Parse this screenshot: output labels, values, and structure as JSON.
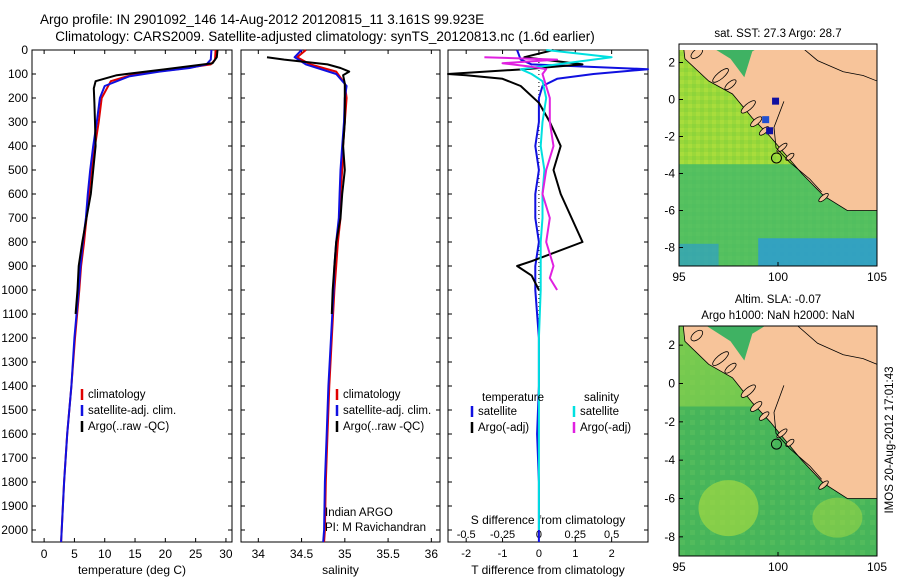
{
  "title_line1": "Argo profile: IN 2901092_146 14-Aug-2012 20120815_11 3.161S 99.923E",
  "title_line2": "Climatology: CARS2009. Satellite-adjusted climatology: synTS_20120813.nc (1.6d earlier)",
  "colors": {
    "climatology": "#e00000",
    "satellite": "#1010e0",
    "argo": "#000000",
    "sal_satellite": "#00e0e0",
    "sal_argo": "#e020e0",
    "land": "#f7c49a"
  },
  "chart_data": [
    {
      "type": "line",
      "name": "temperature",
      "xlabel": "temperature (deg C)",
      "ylabel": "",
      "xlim": [
        -2,
        31
      ],
      "ylim": [
        2050,
        0
      ],
      "xticks": [
        0,
        5,
        10,
        15,
        20,
        25,
        30
      ],
      "yticks": [
        0,
        100,
        200,
        300,
        400,
        500,
        600,
        700,
        800,
        900,
        1000,
        1100,
        1200,
        1300,
        1400,
        1500,
        1600,
        1700,
        1800,
        1900,
        2000
      ],
      "legend": [
        "climatology",
        "satellite-adj. clim.",
        "Argo(..raw -QC)"
      ],
      "series": [
        {
          "name": "climatology",
          "color": "#e00000",
          "points": [
            [
              28.3,
              0
            ],
            [
              28.2,
              40
            ],
            [
              27.5,
              60
            ],
            [
              22,
              80
            ],
            [
              15,
              100
            ],
            [
              11,
              130
            ],
            [
              9.5,
              200
            ],
            [
              9,
              300
            ],
            [
              8.4,
              400
            ],
            [
              7.8,
              500
            ],
            [
              7.4,
              600
            ],
            [
              7,
              700
            ],
            [
              6.6,
              800
            ],
            [
              6.1,
              900
            ],
            [
              5.8,
              1000
            ],
            [
              5.1,
              1200
            ],
            [
              4.5,
              1400
            ],
            [
              3.8,
              1600
            ],
            [
              3.3,
              1800
            ],
            [
              2.9,
              2000
            ],
            [
              2.8,
              2050
            ]
          ]
        },
        {
          "name": "satellite-adj. clim.",
          "color": "#1010e0",
          "points": [
            [
              27.6,
              0
            ],
            [
              27.5,
              40
            ],
            [
              26.8,
              60
            ],
            [
              24,
              75
            ],
            [
              19,
              90
            ],
            [
              14,
              110
            ],
            [
              10,
              150
            ],
            [
              9.2,
              200
            ],
            [
              8.7,
              300
            ],
            [
              8.1,
              400
            ],
            [
              7.6,
              500
            ],
            [
              7.2,
              600
            ],
            [
              6.9,
              700
            ],
            [
              6.4,
              800
            ],
            [
              6,
              900
            ],
            [
              5.7,
              1000
            ],
            [
              5,
              1200
            ],
            [
              4.5,
              1400
            ],
            [
              3.8,
              1600
            ],
            [
              3.3,
              1800
            ],
            [
              2.9,
              2000
            ],
            [
              2.8,
              2050
            ]
          ]
        },
        {
          "name": "Argo(..raw -QC)",
          "color": "#000000",
          "points": [
            [
              28.6,
              0
            ],
            [
              28.5,
              30
            ],
            [
              27.8,
              55
            ],
            [
              20,
              80
            ],
            [
              12,
              105
            ],
            [
              8.5,
              130
            ],
            [
              8.2,
              160
            ],
            [
              8.3,
              220
            ],
            [
              8.4,
              300
            ],
            [
              8.5,
              400
            ],
            [
              8.1,
              500
            ],
            [
              7.7,
              600
            ],
            [
              7,
              700
            ],
            [
              6.3,
              800
            ],
            [
              5.7,
              900
            ],
            [
              5.5,
              1000
            ],
            [
              5.2,
              1100
            ]
          ]
        }
      ]
    },
    {
      "type": "line",
      "name": "salinity",
      "xlabel": "salinity",
      "ylabel": "",
      "xlim": [
        33.8,
        36.1
      ],
      "ylim": [
        2050,
        0
      ],
      "xticks": [
        34,
        34.5,
        35,
        35.5,
        36
      ],
      "legend": [
        "climatology",
        "satellite-adj. clim.",
        "Argo(..raw -QC)"
      ],
      "annotation": [
        "Indian ARGO",
        "PI: M Ravichandran"
      ],
      "series": [
        {
          "name": "climatology",
          "color": "#e00000",
          "points": [
            [
              34.55,
              0
            ],
            [
              34.45,
              30
            ],
            [
              34.6,
              60
            ],
            [
              34.9,
              90
            ],
            [
              35.0,
              140
            ],
            [
              35.02,
              200
            ],
            [
              35.0,
              300
            ],
            [
              34.98,
              400
            ],
            [
              34.97,
              500
            ],
            [
              34.95,
              600
            ],
            [
              34.95,
              700
            ],
            [
              34.92,
              800
            ],
            [
              34.9,
              900
            ],
            [
              34.88,
              1000
            ],
            [
              34.85,
              1200
            ],
            [
              34.82,
              1400
            ],
            [
              34.8,
              1600
            ],
            [
              34.78,
              1800
            ],
            [
              34.77,
              2000
            ],
            [
              34.76,
              2050
            ]
          ]
        },
        {
          "name": "satellite-adj. clim.",
          "color": "#1010e0",
          "points": [
            [
              34.5,
              0
            ],
            [
              34.42,
              30
            ],
            [
              34.55,
              60
            ],
            [
              34.9,
              100
            ],
            [
              35.02,
              150
            ],
            [
              35.0,
              200
            ],
            [
              34.99,
              300
            ],
            [
              34.97,
              400
            ],
            [
              34.95,
              500
            ],
            [
              34.94,
              600
            ],
            [
              34.93,
              700
            ],
            [
              34.9,
              800
            ],
            [
              34.88,
              900
            ],
            [
              34.87,
              1000
            ],
            [
              34.84,
              1200
            ],
            [
              34.81,
              1400
            ],
            [
              34.79,
              1600
            ],
            [
              34.77,
              1800
            ],
            [
              34.76,
              2000
            ],
            [
              34.75,
              2050
            ]
          ]
        },
        {
          "name": "Argo(..raw -QC)",
          "color": "#000000",
          "points": [
            [
              34.1,
              30
            ],
            [
              34.3,
              40
            ],
            [
              34.8,
              60
            ],
            [
              34.95,
              75
            ],
            [
              35.05,
              90
            ],
            [
              34.98,
              105
            ],
            [
              35.0,
              140
            ],
            [
              35.0,
              200
            ],
            [
              35.0,
              300
            ],
            [
              34.98,
              400
            ],
            [
              35.0,
              500
            ],
            [
              34.97,
              600
            ],
            [
              34.95,
              700
            ],
            [
              34.9,
              800
            ],
            [
              34.88,
              900
            ],
            [
              34.86,
              1000
            ],
            [
              34.85,
              1100
            ]
          ]
        }
      ]
    },
    {
      "type": "line",
      "name": "difference",
      "xlabel": "T difference from climatology",
      "xlabel_top": "S difference from climatology",
      "xlim": [
        -2.5,
        3
      ],
      "ylim": [
        2050,
        0
      ],
      "xticks": [
        -2,
        -1,
        0,
        1,
        2
      ],
      "xticks_s": [
        -0.5,
        -0.25,
        0,
        0.25,
        0.5
      ],
      "xticks_s_labels": [
        "-0.5",
        "-0.25",
        "0",
        "0.25",
        "0.5"
      ],
      "legend_t_title": "temperature",
      "legend_s_title": "salinity",
      "legend": [
        "satellite",
        "Argo(-adj)",
        "satellite",
        "Argo(-adj)"
      ],
      "series": [
        {
          "name": "T satellite",
          "color": "#1010e0",
          "points": [
            [
              -0.6,
              0
            ],
            [
              -0.5,
              40
            ],
            [
              -0.2,
              60
            ],
            [
              3,
              80
            ],
            [
              1.5,
              100
            ],
            [
              0.5,
              120
            ],
            [
              0.1,
              150
            ],
            [
              0,
              200
            ],
            [
              0,
              300
            ],
            [
              -0.1,
              400
            ],
            [
              0,
              500
            ],
            [
              -0.1,
              600
            ],
            [
              -0.1,
              700
            ],
            [
              0,
              800
            ],
            [
              -0.1,
              900
            ],
            [
              -0.1,
              1000
            ],
            [
              0,
              1200
            ],
            [
              0,
              1400
            ],
            [
              -0.05,
              1600
            ],
            [
              0,
              1800
            ],
            [
              0,
              2000
            ],
            [
              0,
              2050
            ]
          ]
        },
        {
          "name": "T Argo(-adj)",
          "color": "#000000",
          "points": [
            [
              0.4,
              0
            ],
            [
              -0.4,
              30
            ],
            [
              1.2,
              60
            ],
            [
              -0.4,
              80
            ],
            [
              -2.5,
              100
            ],
            [
              -2,
              105
            ],
            [
              -1.0,
              120
            ],
            [
              -0.5,
              150
            ],
            [
              0,
              220
            ],
            [
              0.3,
              300
            ],
            [
              0.6,
              400
            ],
            [
              0.4,
              500
            ],
            [
              0.6,
              600
            ],
            [
              0.9,
              700
            ],
            [
              1.2,
              800
            ],
            [
              -0.2,
              880
            ],
            [
              -0.6,
              900
            ],
            [
              -0.2,
              940
            ],
            [
              0,
              1000
            ]
          ]
        },
        {
          "name": "S satellite",
          "color": "#00e0e0",
          "points": [
            [
              0.2,
              0
            ],
            [
              2,
              30
            ],
            [
              0.5,
              60
            ],
            [
              -0.5,
              80
            ],
            [
              -0.2,
              100
            ],
            [
              0.1,
              130
            ],
            [
              0.2,
              200
            ],
            [
              0.1,
              300
            ],
            [
              0.05,
              400
            ],
            [
              0.15,
              500
            ],
            [
              0.1,
              600
            ],
            [
              0.1,
              700
            ],
            [
              0.05,
              800
            ],
            [
              0.05,
              900
            ],
            [
              0.05,
              1000
            ],
            [
              0,
              1200
            ],
            [
              0,
              1400
            ],
            [
              0,
              1600
            ],
            [
              0,
              1800
            ],
            [
              0,
              2000
            ]
          ]
        },
        {
          "name": "S Argo(-adj)",
          "color": "#e020e0",
          "points": [
            [
              -1.5,
              30
            ],
            [
              0.5,
              40
            ],
            [
              -1,
              55
            ],
            [
              -0.2,
              70
            ],
            [
              0.2,
              80
            ],
            [
              0.1,
              100
            ],
            [
              0.3,
              200
            ],
            [
              0.3,
              300
            ],
            [
              0.4,
              400
            ],
            [
              0.2,
              500
            ],
            [
              0.1,
              600
            ],
            [
              0.3,
              700
            ],
            [
              0.2,
              800
            ],
            [
              0.4,
              900
            ],
            [
              0.3,
              950
            ],
            [
              0.5,
              1000
            ]
          ]
        }
      ]
    },
    {
      "type": "heatmap",
      "name": "sst_map",
      "title": "sat. SST: 27.3 Argo: 28.7",
      "xlim": [
        95,
        105
      ],
      "ylim": [
        -9,
        3
      ],
      "xticks": [
        95,
        100,
        105
      ],
      "yticks": [
        2,
        0,
        -2,
        -4,
        -6,
        -8
      ]
    },
    {
      "type": "heatmap",
      "name": "sla_map",
      "title": "Altim. SLA: -0.07",
      "subtitle": "Argo h1000: NaN h2000: NaN",
      "xlim": [
        95,
        105
      ],
      "ylim": [
        -9,
        3
      ],
      "xticks": [
        95,
        100,
        105
      ],
      "yticks": [
        2,
        0,
        -2,
        -4,
        -6,
        -8
      ]
    }
  ],
  "watermark": "IMOS 20-Aug-2012 17:01:43"
}
